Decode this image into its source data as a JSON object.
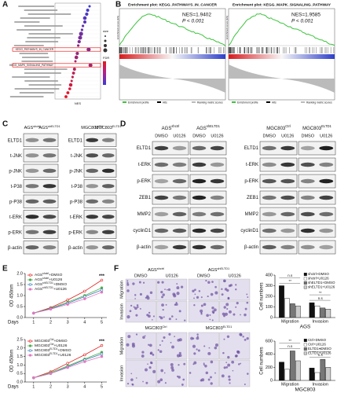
{
  "letters": [
    "A",
    "B",
    "C",
    "D",
    "E",
    "F"
  ],
  "gsea": [
    {
      "title": "Enrichment plot: KEGG_PATHWAYS_IN_CANCER",
      "nes": "NES=1.9402",
      "p": "P < 0.001",
      "ylabel": "Enrichment score (ES)",
      "legend": [
        "Enrichment profile",
        "Hits",
        "Ranking metric scores"
      ]
    },
    {
      "title": "Enrichment plot: KEGG_MAPK_SIGNALING_PATHWAY",
      "nes": "NES=1.9585",
      "p": "P < 0.001",
      "ylabel": "Enrichment score (ES)",
      "legend": [
        "Enrichment profile",
        "Hits",
        "Ranking metric scores"
      ]
    }
  ],
  "blot_c": {
    "headers": [
      {
        "text": "AGS",
        "sup": "shctrl"
      },
      {
        "text": "AGS",
        "sup": "shELTD1"
      },
      {
        "text": "MGC803",
        "sup": "Ctrl"
      },
      {
        "text": "MGC803",
        "sup": "ELTD1"
      }
    ],
    "rows_left": [
      "ELTD1",
      "t-JNK",
      "p-JNK",
      "t-P38",
      "p-P38",
      "t-ERK",
      "p-ERK",
      "β-actin"
    ],
    "rows_right": [
      "ELTD1",
      "t-JNK",
      "p-JNK",
      "t-P38",
      "p-P38",
      "t-ERK",
      "p-ERK",
      "β-actin"
    ]
  },
  "blot_d": {
    "headers": [
      {
        "text": "AGS",
        "sup": "shctrl"
      },
      {
        "text": "AGS",
        "sup": "shELTD1"
      },
      {
        "text": "MGC803",
        "sup": "Ctrl"
      },
      {
        "text": "MGC803",
        "sup": "ELTD1"
      }
    ],
    "conditions": [
      "DMSO",
      "U0126",
      "DMSO",
      "U0126",
      "DMSO",
      "U0126",
      "DMSO",
      "U0126"
    ],
    "rows_left": [
      "ELTD1",
      "t-ERK",
      "p-ERK",
      "ZEB1",
      "MMP2",
      "cyclinD1",
      "β-actin"
    ],
    "rows_right": [
      "ELTD1",
      "t-ERK",
      "p-ERK",
      "ZEB1",
      "MMP2",
      "cyclinD1",
      "β-actin"
    ]
  },
  "micrographs": {
    "headers": [
      {
        "text": "AGS",
        "sup": "shctrl"
      },
      {
        "text": "AGS",
        "sup": "shELTD1"
      },
      {
        "text": "MGC803",
        "sup": "Ctrl"
      },
      {
        "text": "MGC803",
        "sup": "ELTD1"
      }
    ],
    "conditions": [
      "DMSO",
      "U0126",
      "DMSO",
      "U0126"
    ],
    "rows_top": [
      "Migration",
      "Invasion"
    ],
    "rows_bottom": [
      "Migration",
      "Invasion"
    ]
  },
  "chart_data": [
    {
      "type": "dot",
      "xlabel": "NES",
      "size_title": "size",
      "color_title": "FDR",
      "xlim": [
        1.6,
        2.05
      ],
      "categories": [
        null,
        null,
        null,
        null,
        null,
        null,
        null,
        null,
        null,
        null,
        null,
        "KEGG_PATHWAYS_IN_CANCER",
        null,
        null,
        null,
        "KEGG_MAPK_SIGNALING_PATHWAY",
        null,
        null,
        null,
        null,
        null,
        null,
        null,
        null
      ],
      "values": [
        1.95,
        1.93,
        1.92,
        1.9,
        1.9,
        1.88,
        1.87,
        1.86,
        1.85,
        1.84,
        1.83,
        1.94,
        1.82,
        1.81,
        1.8,
        1.96,
        1.79,
        1.78,
        1.77,
        1.76,
        1.75,
        1.74,
        1.72,
        1.7
      ]
    },
    {
      "type": "line",
      "ylabel": "OD 450nm",
      "xlabel": "Days",
      "annotation": "***",
      "x": [
        1,
        2,
        3,
        4,
        5
      ],
      "xticks": [
        1,
        2,
        3,
        4,
        5
      ],
      "xlim": [
        0.5,
        5.3
      ],
      "ylim": [
        0,
        2
      ],
      "yticks": [
        {
          "value": 0,
          "label": "0.0"
        },
        {
          "value": 0.5,
          "label": "0.5"
        },
        {
          "value": 1,
          "label": "1.0"
        },
        {
          "value": 1.5,
          "label": "1.5"
        },
        {
          "value": 2,
          "label": "2.0"
        }
      ],
      "series": [
        {
          "name": {
            "text": "AGS",
            "sup": "shctrl",
            "suffix": "+DMSO"
          },
          "color": "#e41a1c",
          "values": [
            0.2,
            0.45,
            0.8,
            1.2,
            1.7
          ]
        },
        {
          "name": {
            "text": "AGS",
            "sup": "shctrl",
            "suffix": "+U0126"
          },
          "color": "#4daf4a",
          "values": [
            0.2,
            0.42,
            0.7,
            1.0,
            1.35
          ]
        },
        {
          "name": {
            "text": "AGS",
            "sup": "shELTD1",
            "suffix": "+DMSO"
          },
          "color": "#377eb8",
          "values": [
            0.2,
            0.4,
            0.65,
            0.95,
            1.25
          ]
        },
        {
          "name": {
            "text": "AGS",
            "sup": "shELTD1",
            "suffix": "+U0126"
          },
          "color": "#e377c2",
          "values": [
            0.2,
            0.38,
            0.6,
            0.85,
            1.15
          ]
        }
      ]
    },
    {
      "type": "line",
      "ylabel": "OD 450nm",
      "xlabel": "Days",
      "annotation": "***",
      "x": [
        1,
        2,
        3,
        4,
        5
      ],
      "xticks": [
        1,
        2,
        3,
        4,
        5
      ],
      "xlim": [
        0.5,
        5.3
      ],
      "ylim": [
        0,
        2.5
      ],
      "yticks": [
        {
          "value": 0,
          "label": "0.0"
        },
        {
          "value": 0.5,
          "label": "0.5"
        },
        {
          "value": 1,
          "label": "1.0"
        },
        {
          "value": 1.5,
          "label": "1.5"
        },
        {
          "value": 2,
          "label": "2.0"
        },
        {
          "value": 2.5,
          "label": "2.5"
        }
      ],
      "series": [
        {
          "name": {
            "text": "MGC803",
            "sup": "Ctrl",
            "suffix": "+DMSO"
          },
          "color": "#e41a1c",
          "values": [
            0.25,
            0.6,
            1.1,
            1.6,
            2.15
          ]
        },
        {
          "name": {
            "text": "MGC803",
            "sup": "Ctrl",
            "suffix": "+U0126"
          },
          "color": "#4daf4a",
          "values": [
            0.25,
            0.55,
            0.95,
            1.35,
            1.75
          ]
        },
        {
          "name": {
            "text": "MGC803",
            "sup": "ELTD1",
            "suffix": "+DMSO"
          },
          "color": "#377eb8",
          "values": [
            0.25,
            0.5,
            0.9,
            1.3,
            1.65
          ]
        },
        {
          "name": {
            "text": "MGC803",
            "sup": "ELTD1",
            "suffix": "+U0126"
          },
          "color": "#e377c2",
          "values": [
            0.25,
            0.5,
            0.85,
            1.2,
            1.5
          ]
        }
      ]
    },
    {
      "type": "bar",
      "ylabel": "Cell numbers",
      "xlabel": "AGS",
      "categories": [
        "Migration",
        "Invasion"
      ],
      "ylim": [
        0,
        400
      ],
      "yticks": [
        0,
        100,
        200,
        300,
        400
      ],
      "annotations": [
        [
          "**",
          "n.s"
        ],
        [
          "n.s",
          "**"
        ]
      ],
      "series": [
        {
          "name": "shctrl+DMSO",
          "color": "#111111",
          "values": [
            300,
            140
          ]
        },
        {
          "name": "shctrl+U0126",
          "color": "#ffffff",
          "values": [
            180,
            110
          ]
        },
        {
          "name": "shELTD1+DMSO",
          "color": "#777777",
          "values": [
            130,
            90
          ]
        },
        {
          "name": "shELTD1+U0126",
          "color": "#cccccc",
          "values": [
            110,
            80
          ]
        }
      ]
    },
    {
      "type": "bar",
      "ylabel": "Cell numbers",
      "xlabel": "MGC803",
      "categories": [
        "Migration",
        "Invasion"
      ],
      "ylim": [
        0,
        600
      ],
      "yticks": [
        0,
        200,
        400,
        600
      ],
      "annotations": [
        [
          "n.s",
          "**"
        ],
        [
          "n.s",
          "**"
        ]
      ],
      "series": [
        {
          "name": "Ctrl+DMSO",
          "color": "#111111",
          "values": [
            280,
            190
          ]
        },
        {
          "name": "Ctrl+U0126",
          "color": "#ffffff",
          "values": [
            170,
            120
          ]
        },
        {
          "name": "ELTD1+DMSO",
          "color": "#777777",
          "values": [
            450,
            320
          ]
        },
        {
          "name": "ELTD1+U0126",
          "color": "#cccccc",
          "values": [
            300,
            200
          ]
        }
      ]
    }
  ]
}
